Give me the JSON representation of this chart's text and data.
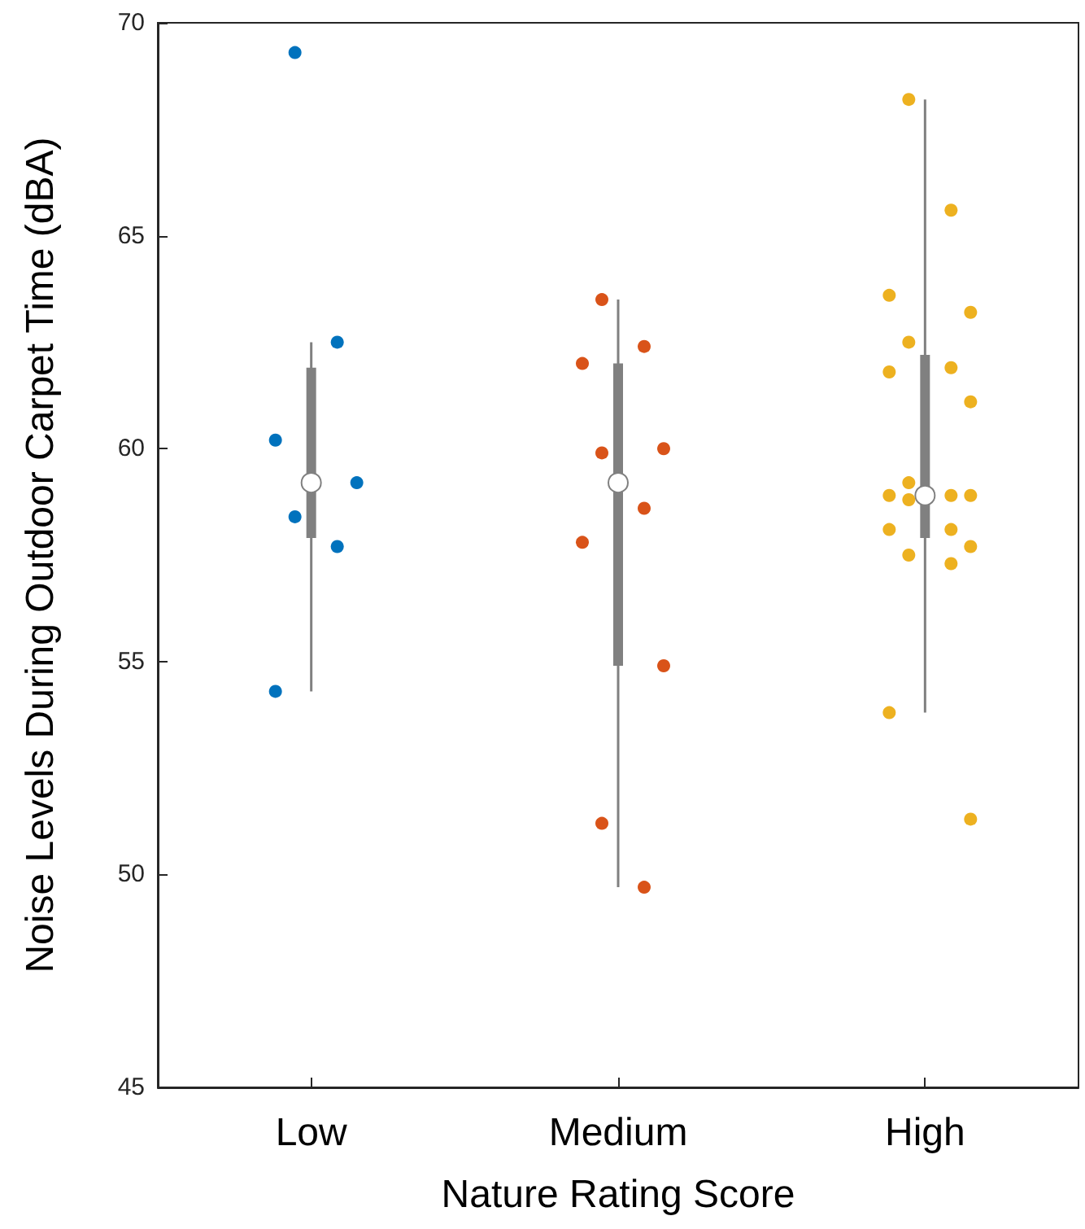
{
  "chart_data": {
    "type": "box",
    "xlabel": "Nature Rating Score",
    "ylabel": "Noise Levels During Outdoor Carpet Time (dBA)",
    "categories": [
      "Low",
      "Medium",
      "High"
    ],
    "ylim": [
      45,
      70
    ],
    "yticks": [
      45,
      50,
      55,
      60,
      65,
      70
    ],
    "grid": false,
    "series": [
      {
        "type": "box",
        "color": "#808080",
        "boxes": [
          {
            "low": 54.3,
            "q1": 57.9,
            "median": 59.2,
            "q3": 61.9,
            "high": 62.5
          },
          {
            "low": 49.7,
            "q1": 54.9,
            "median": 59.2,
            "q3": 62.0,
            "high": 63.5
          },
          {
            "low": 53.8,
            "q1": 57.9,
            "median": 58.9,
            "q3": 62.2,
            "high": 68.2
          }
        ]
      },
      {
        "type": "scatter",
        "color": "#0072bd",
        "x": [
          "Low",
          "Low",
          "Low",
          "Low",
          "Low",
          "Low",
          "Low"
        ],
        "values": [
          69.3,
          62.5,
          60.2,
          59.2,
          58.4,
          57.7,
          54.3
        ]
      },
      {
        "type": "scatter",
        "color": "#d95319",
        "x": [
          "Medium",
          "Medium",
          "Medium",
          "Medium",
          "Medium",
          "Medium",
          "Medium",
          "Medium",
          "Medium",
          "Medium"
        ],
        "values": [
          63.5,
          62.4,
          62.0,
          60.0,
          59.9,
          58.6,
          57.8,
          54.9,
          51.2,
          49.7
        ]
      },
      {
        "type": "scatter",
        "color": "#edb120",
        "x": [
          "High",
          "High",
          "High",
          "High",
          "High",
          "High",
          "High",
          "High",
          "High",
          "High",
          "High",
          "High",
          "High",
          "High",
          "High",
          "High",
          "High",
          "High",
          "High",
          "High"
        ],
        "values": [
          68.2,
          65.6,
          63.6,
          63.2,
          62.5,
          61.9,
          61.8,
          61.1,
          59.2,
          58.9,
          58.9,
          58.9,
          58.8,
          58.1,
          58.1,
          57.7,
          57.5,
          57.3,
          53.8,
          51.3
        ]
      }
    ]
  }
}
